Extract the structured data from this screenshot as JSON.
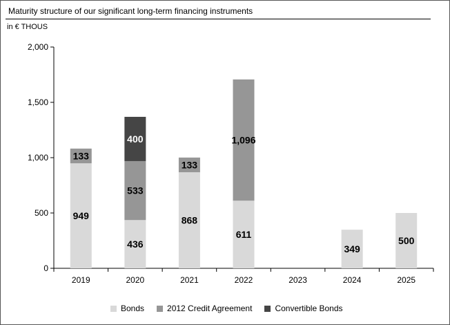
{
  "header": {
    "title": "Maturity structure of our significant long-term financing instruments",
    "unit": "in € THOUS"
  },
  "chart_data": {
    "type": "bar",
    "stacked": true,
    "categories": [
      "2019",
      "2020",
      "2021",
      "2022",
      "2023",
      "2024",
      "2025"
    ],
    "series": [
      {
        "name": "Bonds",
        "color": "#d9d9d9",
        "values": [
          949,
          436,
          868,
          611,
          0,
          349,
          500
        ]
      },
      {
        "name": "2012 Credit Agreement",
        "color": "#969696",
        "values": [
          133,
          533,
          133,
          1096,
          0,
          0,
          0
        ]
      },
      {
        "name": "Convertible Bonds",
        "color": "#454545",
        "values": [
          0,
          400,
          0,
          0,
          0,
          0,
          0
        ]
      }
    ],
    "ylim": [
      0,
      2000
    ],
    "yticks": [
      0,
      500,
      1000,
      1500,
      2000
    ],
    "ytick_labels": [
      "0",
      "500",
      "1,000",
      "1,500",
      "2,000"
    ],
    "data_labels": [
      [
        "949",
        "436",
        "868",
        "611",
        "",
        "349",
        "500"
      ],
      [
        "133",
        "533",
        "133",
        "1,096",
        "",
        "",
        ""
      ],
      [
        "",
        "400",
        "",
        "",
        "",
        "",
        ""
      ]
    ],
    "grid": false,
    "legend_position": "bottom"
  }
}
